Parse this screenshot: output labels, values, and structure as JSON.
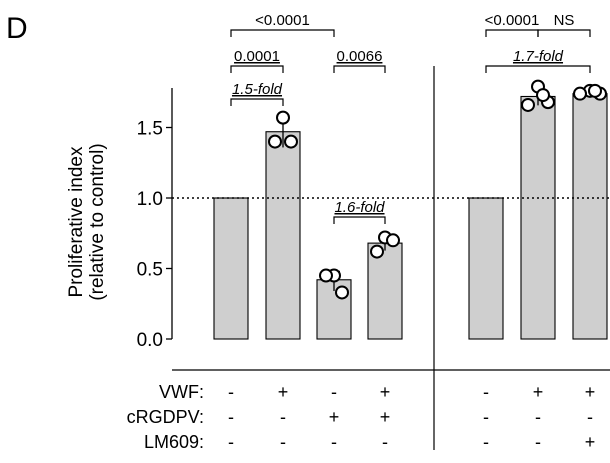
{
  "panel_label": "D",
  "chart_data": {
    "type": "bar",
    "ylabel_lines": [
      "Proliferative index",
      "(relative to control)"
    ],
    "ylim": [
      0,
      1.85
    ],
    "yticks": [
      "0.0",
      "0.5",
      "1.0",
      "1.5"
    ],
    "ytick_values": [
      0.0,
      0.5,
      1.0,
      1.5
    ],
    "reference_line": 1.0,
    "bars": [
      {
        "value": 1.0,
        "points": []
      },
      {
        "value": 1.47,
        "points": [
          1.57,
          1.4,
          1.4
        ]
      },
      {
        "value": 0.42,
        "points": [
          0.45,
          0.45,
          0.33
        ]
      },
      {
        "value": 0.68,
        "points": [
          0.72,
          0.62,
          0.7
        ]
      },
      {
        "value": 1.0,
        "points": []
      },
      {
        "value": 1.72,
        "points": [
          1.79,
          1.66,
          1.68,
          1.73
        ]
      },
      {
        "value": 1.74,
        "points": [
          1.76,
          1.74,
          1.74,
          1.76
        ]
      }
    ],
    "conditions": [
      {
        "label": "VWF:",
        "values": [
          "-",
          "+",
          "-",
          "+",
          "-",
          "+",
          "+"
        ]
      },
      {
        "label": "cRGDPV:",
        "values": [
          "-",
          "-",
          "+",
          "+",
          "-",
          "-",
          "-"
        ]
      },
      {
        "label": "LM609:",
        "values": [
          "-",
          "-",
          "-",
          "-",
          "-",
          "-",
          "+"
        ]
      }
    ],
    "comparisons": [
      {
        "from": 0,
        "to": 2,
        "label": "<0.0001",
        "italic": false,
        "level": 3
      },
      {
        "from": 0,
        "to": 1,
        "label": "0.0001",
        "italic": false,
        "level": 2,
        "underline": true
      },
      {
        "from": 2,
        "to": 3,
        "label": "0.0066",
        "italic": false,
        "level": 2,
        "underline": true
      },
      {
        "from": 0,
        "to": 1,
        "label": "1.5-fold",
        "italic": true,
        "level": 1
      },
      {
        "from": 2,
        "to": 3,
        "label": "1.6-fold",
        "italic": true,
        "level": 0
      },
      {
        "from": 4,
        "to": 5,
        "label": "<0.0001",
        "italic": false,
        "level": 3
      },
      {
        "from": 5,
        "to": 6,
        "label": "NS",
        "italic": false,
        "level": 3
      },
      {
        "from": 4,
        "to": 6,
        "label": "1.7-fold",
        "italic": true,
        "level": 2
      }
    ]
  }
}
